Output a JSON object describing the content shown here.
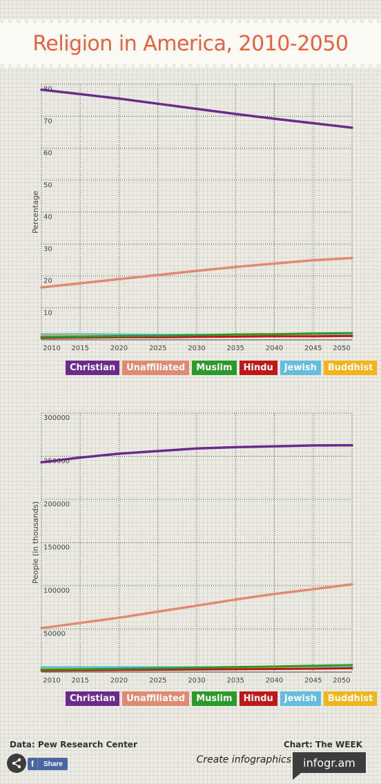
{
  "title": "Religion in America, 2010-2050",
  "legend": [
    {
      "label": "Christian",
      "color": "#6b2a8c"
    },
    {
      "label": "Unaffiliated",
      "color": "#e08a72"
    },
    {
      "label": "Muslim",
      "color": "#2a9a2a"
    },
    {
      "label": "Hindu",
      "color": "#c01818"
    },
    {
      "label": "Jewish",
      "color": "#62bde0"
    },
    {
      "label": "Buddhist",
      "color": "#f2b418"
    }
  ],
  "chart_data": [
    {
      "type": "line",
      "ylabel": "Percentage",
      "x": [
        2010,
        2015,
        2020,
        2025,
        2030,
        2035,
        2040,
        2045,
        2050
      ],
      "ylim": [
        0,
        80
      ],
      "yticks": [
        10,
        20,
        30,
        40,
        50,
        60,
        70,
        80
      ],
      "grid": true,
      "legend_position": "bottom",
      "series": [
        {
          "name": "Christian",
          "color": "#6b2a8c",
          "values": [
            78.3,
            76.9,
            75.5,
            73.9,
            72.3,
            70.7,
            69.2,
            67.8,
            66.4
          ]
        },
        {
          "name": "Unaffiliated",
          "color": "#e08a72",
          "values": [
            16.4,
            17.7,
            19.0,
            20.3,
            21.6,
            22.8,
            23.9,
            24.9,
            25.6
          ]
        },
        {
          "name": "Muslim",
          "color": "#2a9a2a",
          "values": [
            0.9,
            1.0,
            1.2,
            1.3,
            1.5,
            1.7,
            1.8,
            2.0,
            2.1
          ]
        },
        {
          "name": "Hindu",
          "color": "#c01818",
          "values": [
            0.6,
            0.7,
            0.8,
            0.8,
            0.9,
            1.0,
            1.1,
            1.1,
            1.2
          ]
        },
        {
          "name": "Jewish",
          "color": "#62bde0",
          "values": [
            1.8,
            1.8,
            1.7,
            1.6,
            1.6,
            1.5,
            1.5,
            1.4,
            1.4
          ]
        },
        {
          "name": "Buddhist",
          "color": "#f2b418",
          "values": [
            1.2,
            1.2,
            1.2,
            1.2,
            1.2,
            1.2,
            1.2,
            1.2,
            1.2
          ]
        }
      ]
    },
    {
      "type": "line",
      "ylabel": "People (in thousands)",
      "x": [
        2010,
        2015,
        2020,
        2025,
        2030,
        2035,
        2040,
        2045,
        2050
      ],
      "ylim": [
        0,
        300000
      ],
      "yticks": [
        50000,
        100000,
        150000,
        200000,
        250000,
        300000
      ],
      "grid": true,
      "legend_position": "bottom",
      "series": [
        {
          "name": "Christian",
          "color": "#6b2a8c",
          "values": [
            243000,
            248500,
            253000,
            256000,
            259000,
            260500,
            261500,
            262500,
            262700
          ]
        },
        {
          "name": "Unaffiliated",
          "color": "#e08a72",
          "values": [
            51000,
            57000,
            63000,
            70000,
            77000,
            84000,
            90500,
            96000,
            101700
          ]
        },
        {
          "name": "Muslim",
          "color": "#2a9a2a",
          "values": [
            2800,
            3300,
            3900,
            4500,
            5200,
            5900,
            6500,
            7400,
            8100
          ]
        },
        {
          "name": "Hindu",
          "color": "#c01818",
          "values": [
            1800,
            2100,
            2400,
            2700,
            3000,
            3300,
            3600,
            3900,
            4500
          ]
        },
        {
          "name": "Jewish",
          "color": "#62bde0",
          "values": [
            5700,
            5700,
            5700,
            5700,
            5600,
            5600,
            5500,
            5500,
            5400
          ]
        },
        {
          "name": "Buddhist",
          "color": "#f2b418",
          "values": [
            3600,
            3700,
            3800,
            3900,
            4000,
            4100,
            4200,
            4300,
            4300
          ]
        }
      ]
    }
  ],
  "footer": {
    "source": "Data: Pew Research Center",
    "credit": "Chart: The WEEK",
    "share_label": "Share",
    "create_label": "Create infographics",
    "brand": "infogr.am"
  }
}
